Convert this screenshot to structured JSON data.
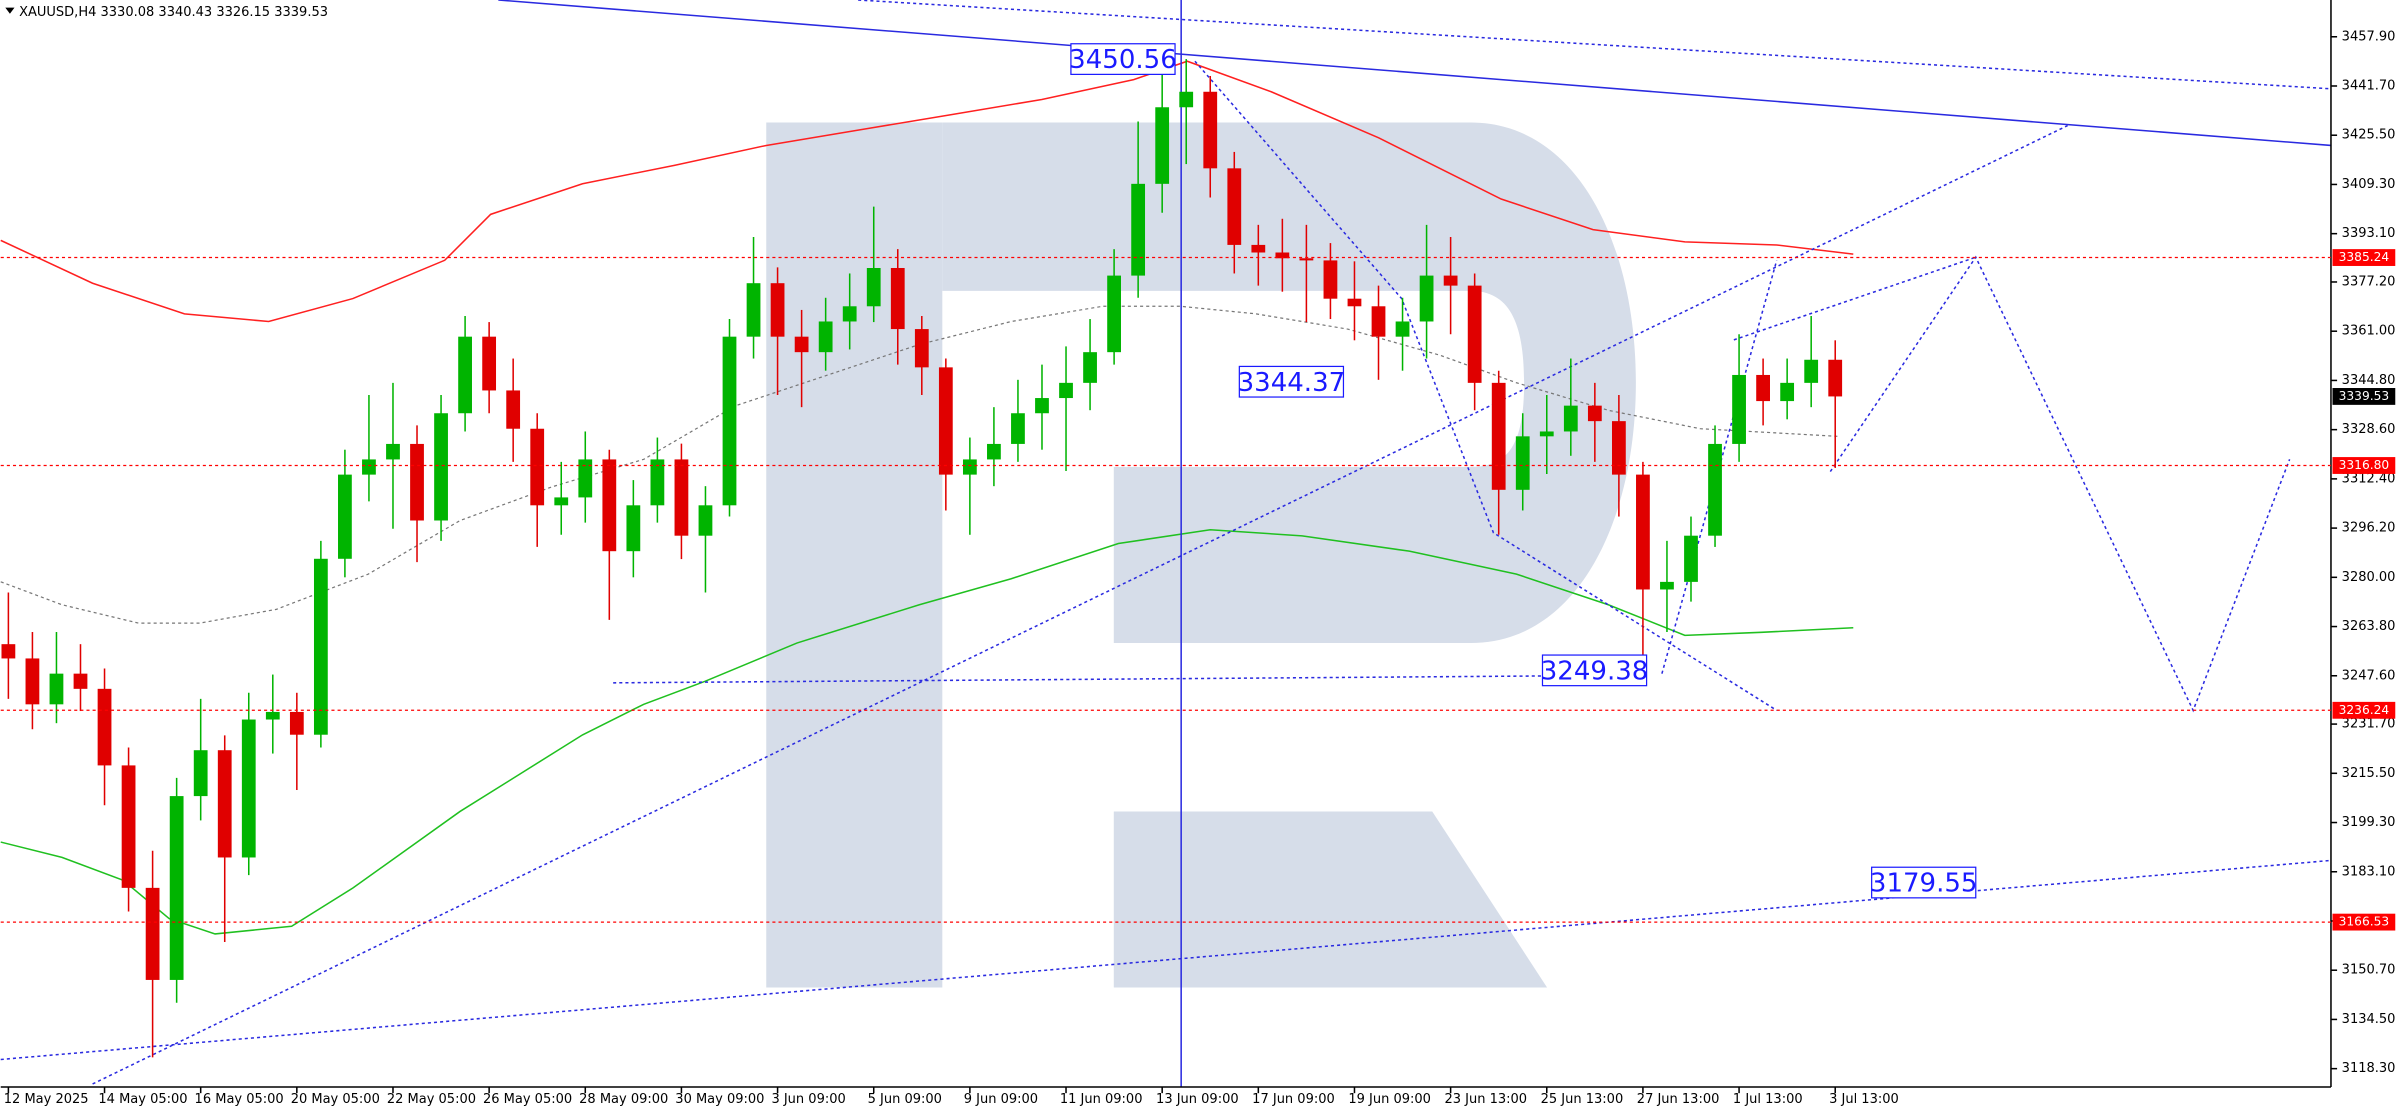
{
  "chart_data": {
    "type": "candlestick",
    "symbol": "XAUUSD,H4",
    "ohlc": [
      3330.08,
      3340.43,
      3326.15,
      3339.53
    ],
    "up_color": "#00b400",
    "down_color": "#e00000",
    "level_color": "#ff0000",
    "ylim": [
      3112.25,
      3470.0
    ],
    "yticks": [
      {
        "value": 3457.9,
        "label": "3457.90"
      },
      {
        "value": 3441.7,
        "label": "3441.70"
      },
      {
        "value": 3425.5,
        "label": "3425.50"
      },
      {
        "value": 3409.3,
        "label": "3409.30"
      },
      {
        "value": 3393.1,
        "label": "3393.10"
      },
      {
        "value": 3377.2,
        "label": "3377.20"
      },
      {
        "value": 3361.0,
        "label": "3361.00"
      },
      {
        "value": 3344.8,
        "label": "3344.80"
      },
      {
        "value": 3328.6,
        "label": "3328.60"
      },
      {
        "value": 3312.4,
        "label": "3312.40"
      },
      {
        "value": 3296.2,
        "label": "3296.20"
      },
      {
        "value": 3280.0,
        "label": "3280.00"
      },
      {
        "value": 3263.8,
        "label": "3263.80"
      },
      {
        "value": 3247.6,
        "label": "3247.60"
      },
      {
        "value": 3231.7,
        "label": "3231.70"
      },
      {
        "value": 3215.5,
        "label": "3215.50"
      },
      {
        "value": 3199.3,
        "label": "3199.30"
      },
      {
        "value": 3183.1,
        "label": "3183.10"
      },
      {
        "value": 3166.9,
        "label": "3166.90"
      },
      {
        "value": 3150.7,
        "label": "3150.70"
      },
      {
        "value": 3134.5,
        "label": "3134.50"
      },
      {
        "value": 3118.3,
        "label": "3118.30"
      }
    ],
    "levels": [
      3385.24,
      {
        "value": 3316.8,
        "label": "3316.80"
      },
      3236.24,
      3166.53
    ],
    "last_price": 3339.53,
    "annotations": [
      3450.56,
      3344.37,
      3249.38,
      3179.55
    ],
    "categories": [
      "12 May 2025",
      null,
      null,
      null,
      "14 May 05:00",
      null,
      null,
      null,
      "16 May 05:00",
      null,
      null,
      null,
      "20 May 05:00",
      null,
      null,
      null,
      "22 May 05:00",
      null,
      null,
      null,
      "26 May 05:00",
      null,
      null,
      null,
      "28 May 09:00",
      null,
      null,
      null,
      "30 May 09:00",
      null,
      null,
      null,
      "3 Jun 09:00",
      null,
      null,
      null,
      "5 Jun 09:00",
      null,
      null,
      null,
      "9 Jun 09:00",
      null,
      null,
      null,
      "11 Jun 09:00",
      null,
      null,
      null,
      "13 Jun 09:00",
      null,
      null,
      null,
      "17 Jun 09:00",
      null,
      null,
      null,
      "19 Jun 09:00",
      null,
      null,
      null,
      "23 Jun 13:00",
      null,
      null,
      null,
      "25 Jun 13:00",
      null,
      null,
      null,
      "27 Jun 13:00",
      null,
      null,
      null,
      "1 Jul 13:00",
      null,
      null,
      null,
      "3 Jul 13:00"
    ],
    "open": [
      3258.0,
      3253.3,
      3238.2,
      3248.3,
      3243.3,
      3218.1,
      3177.8,
      3147.5,
      3208.0,
      3223.1,
      3187.8,
      3233.2,
      3235.7,
      3228.2,
      3286.1,
      3313.8,
      3318.8,
      3323.9,
      3298.7,
      3334.0,
      3359.2,
      3341.5,
      3328.9,
      3303.7,
      3306.3,
      3318.8,
      3288.6,
      3303.7,
      3318.8,
      3293.7,
      3303.7,
      3359.2,
      3376.8,
      3359.2,
      3354.1,
      3364.2,
      3369.2,
      3381.8,
      3361.7,
      3349.1,
      3313.8,
      3318.8,
      3323.9,
      3334.0,
      3339.0,
      3344.0,
      3354.1,
      3379.3,
      3409.5,
      3434.7,
      3439.8,
      3414.6,
      3389.4,
      3386.9,
      3385.0,
      3384.3,
      3371.7,
      3369.2,
      3359.2,
      3364.2,
      3379.3,
      3376.0,
      3344.0,
      3308.8,
      3326.4,
      3328.0,
      3336.5,
      3331.4,
      3313.8,
      3276.0,
      3278.5,
      3293.7,
      3323.9,
      3346.6,
      3338.0,
      3344.0,
      3351.6
    ],
    "high": [
      3275.0,
      3262.0,
      3262.0,
      3258.0,
      3250.0,
      3224.0,
      3190.0,
      3214.0,
      3240.0,
      3228.0,
      3242.0,
      3248.0,
      3242.0,
      3292.0,
      3322.0,
      3340.0,
      3344.0,
      3330.0,
      3340.0,
      3366.0,
      3364.0,
      3352.0,
      3334.0,
      3318.0,
      3328.0,
      3322.0,
      3312.0,
      3326.0,
      3324.0,
      3310.0,
      3365.0,
      3392.0,
      3382.0,
      3368.0,
      3372.0,
      3380.0,
      3402.0,
      3388.0,
      3366.0,
      3352.0,
      3326.0,
      3336.0,
      3345.0,
      3350.0,
      3356.0,
      3365.0,
      3388.0,
      3430.0,
      3446.0,
      3450.56,
      3445.0,
      3420.0,
      3396.0,
      3398.0,
      3396.0,
      3390.0,
      3384.0,
      3376.0,
      3372.0,
      3396.0,
      3392.0,
      3380.0,
      3348.0,
      3334.0,
      3340.0,
      3352.0,
      3344.0,
      3340.0,
      3318.0,
      3292.0,
      3300.0,
      3330.0,
      3360.0,
      3352.0,
      3352.0,
      3366.0,
      3358.0
    ],
    "low": [
      3240.0,
      3230.0,
      3232.0,
      3236.0,
      3205.0,
      3170.0,
      3122.0,
      3140.0,
      3200.0,
      3160.0,
      3182.0,
      3222.0,
      3210.0,
      3224.0,
      3280.0,
      3305.0,
      3296.0,
      3285.0,
      3292.0,
      3328.0,
      3334.0,
      3318.0,
      3290.0,
      3294.0,
      3298.0,
      3266.0,
      3280.0,
      3298.0,
      3286.0,
      3275.0,
      3300.0,
      3352.0,
      3340.0,
      3336.0,
      3348.0,
      3355.0,
      3364.0,
      3350.0,
      3340.0,
      3302.0,
      3294.0,
      3310.0,
      3318.0,
      3322.0,
      3315.0,
      3335.0,
      3350.0,
      3372.0,
      3400.0,
      3416.0,
      3405.0,
      3380.0,
      3376.0,
      3374.0,
      3364.0,
      3365.0,
      3358.0,
      3345.0,
      3348.0,
      3352.0,
      3360.0,
      3335.0,
      3294.0,
      3302.0,
      3314.0,
      3320.0,
      3318.0,
      3300.0,
      3249.38,
      3262.0,
      3272.0,
      3290.0,
      3318.0,
      3330.0,
      3332.0,
      3336.0,
      3316.0
    ],
    "close": [
      3253.3,
      3238.2,
      3248.3,
      3243.3,
      3218.1,
      3177.8,
      3147.5,
      3208.0,
      3223.1,
      3187.8,
      3233.2,
      3235.7,
      3228.2,
      3286.1,
      3313.8,
      3318.8,
      3323.9,
      3298.7,
      3334.0,
      3359.2,
      3341.5,
      3328.9,
      3303.7,
      3306.3,
      3318.8,
      3288.6,
      3303.7,
      3318.8,
      3293.7,
      3303.7,
      3359.2,
      3376.8,
      3359.2,
      3354.1,
      3364.2,
      3369.2,
      3381.8,
      3361.7,
      3349.1,
      3313.8,
      3318.8,
      3323.9,
      3334.0,
      3339.0,
      3344.0,
      3354.1,
      3379.3,
      3409.5,
      3434.7,
      3439.8,
      3414.6,
      3389.4,
      3386.9,
      3385.0,
      3384.3,
      3371.7,
      3369.2,
      3359.2,
      3364.2,
      3379.3,
      3376.0,
      3344.0,
      3308.8,
      3326.4,
      3328.0,
      3336.5,
      3331.4,
      3313.8,
      3276.0,
      3278.5,
      3293.7,
      3323.9,
      3346.6,
      3338.0,
      3344.0,
      3351.6,
      3339.53
    ]
  }
}
